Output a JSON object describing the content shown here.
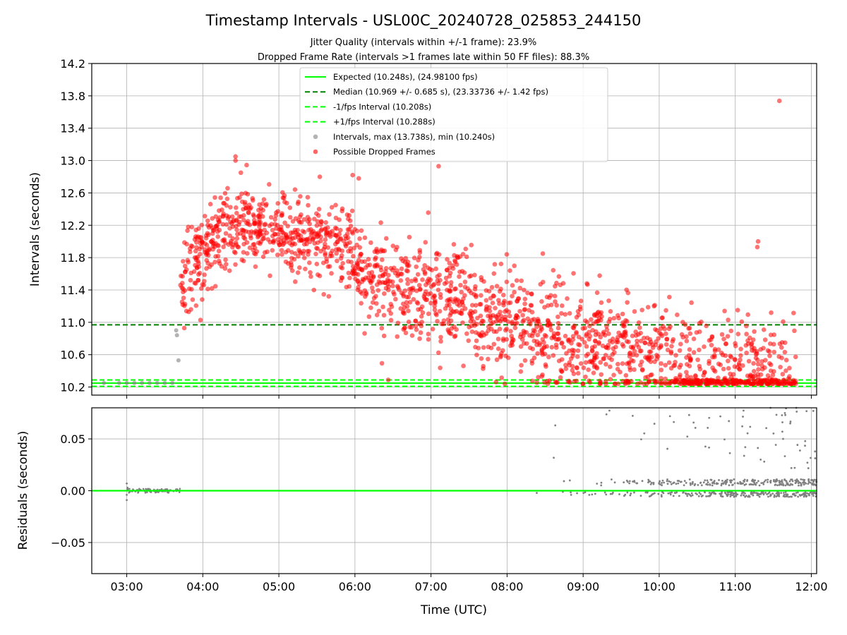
{
  "chart_data": {
    "type": "scatter",
    "title": "Timestamp Intervals - USL00C_20240728_025853_244150",
    "subtitle_lines": [
      "Jitter Quality (intervals within +/-1 frame): 23.9%",
      "Dropped Frame Rate (intervals >1 frames late within 50 FF files): 88.3%"
    ],
    "xlabel": "Time (UTC)",
    "xticks": [
      "03:00",
      "04:00",
      "05:00",
      "06:00",
      "07:00",
      "08:00",
      "09:00",
      "10:00",
      "11:00",
      "12:00"
    ],
    "xlim_hours": [
      2.54,
      12.07
    ],
    "top_panel": {
      "ylabel": "Intervals (seconds)",
      "ylim": [
        10.1,
        14.2
      ],
      "yticks": [
        "10.2",
        "10.6",
        "11.0",
        "11.4",
        "11.8",
        "12.2",
        "12.6",
        "13.0",
        "13.4",
        "13.8",
        "14.2"
      ],
      "grid": true,
      "legend_position": "upper center",
      "reference_lines": [
        {
          "label": "Expected (10.248s), (24.98100 fps)",
          "y": 10.248,
          "style": "solid",
          "color": "#00ff00"
        },
        {
          "label": "Median (10.969 +/- 0.685 s), (23.33736 +/- 1.42 fps)",
          "y": 10.969,
          "style": "dashed",
          "color": "#008000"
        },
        {
          "label": "-1/fps Interval (10.208s)",
          "y": 10.208,
          "style": "dashed",
          "color": "#00ff00"
        },
        {
          "label": "+1/fps Interval (10.288s)",
          "y": 10.288,
          "style": "dashed",
          "color": "#00ff00"
        }
      ],
      "series": [
        {
          "name": "Intervals, max (13.738s), min (10.240s)",
          "color": "#808080",
          "marker": "scatter",
          "points": [
            [
              2.7,
              10.25
            ],
            [
              2.9,
              10.25
            ],
            [
              3.0,
              10.25
            ],
            [
              3.1,
              10.25
            ],
            [
              3.2,
              10.25
            ],
            [
              3.3,
              10.25
            ],
            [
              3.4,
              10.25
            ],
            [
              3.5,
              10.25
            ],
            [
              3.6,
              10.25
            ],
            [
              3.65,
              10.9
            ],
            [
              3.66,
              10.84
            ],
            [
              3.68,
              10.53
            ]
          ]
        },
        {
          "name": "Possible Dropped Frames",
          "color": "#ff0000",
          "marker": "scatter",
          "trend": [
            [
              3.7,
              11.5
            ],
            [
              4.0,
              11.9
            ],
            [
              4.3,
              12.15
            ],
            [
              4.6,
              12.2
            ],
            [
              5.0,
              12.1
            ],
            [
              5.5,
              12.0
            ],
            [
              5.9,
              11.95
            ],
            [
              6.1,
              11.5
            ],
            [
              6.5,
              11.4
            ],
            [
              7.0,
              11.35
            ],
            [
              7.5,
              11.3
            ],
            [
              8.0,
              11.0
            ],
            [
              8.5,
              10.85
            ],
            [
              9.0,
              10.75
            ],
            [
              9.5,
              10.7
            ],
            [
              10.0,
              10.65
            ],
            [
              10.5,
              10.5
            ],
            [
              11.0,
              10.45
            ],
            [
              11.5,
              10.4
            ],
            [
              11.8,
              10.4
            ]
          ],
          "outliers": [
            [
              4.43,
              13.05
            ],
            [
              4.43,
              13.0
            ],
            [
              4.5,
              12.85
            ],
            [
              5.97,
              12.82
            ],
            [
              6.05,
              12.78
            ],
            [
              7.1,
              12.93
            ],
            [
              8.47,
              11.85
            ],
            [
              9.05,
              11.48
            ],
            [
              11.3,
              12.0
            ],
            [
              11.29,
              11.93
            ],
            [
              11.58,
              13.738
            ]
          ]
        }
      ]
    },
    "bottom_panel": {
      "ylabel": "Residuals (seconds)",
      "ylim": [
        -0.08,
        0.08
      ],
      "yticks": [
        "0.05",
        "0.00",
        "−0.05"
      ],
      "grid": true,
      "series": [
        {
          "name": "residuals",
          "color": "#808080",
          "marker": "dots"
        },
        {
          "name": "zero",
          "color": "#00ff00",
          "marker": "line",
          "y": 0.0
        }
      ]
    }
  }
}
